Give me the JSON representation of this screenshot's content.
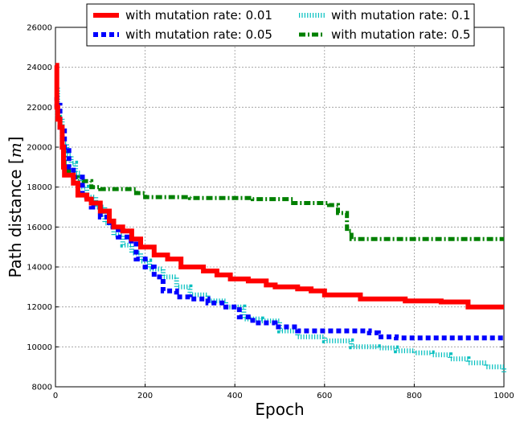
{
  "chart_data": {
    "type": "line",
    "title": "",
    "xlabel": "Epoch",
    "ylabel": "Path distance [m]",
    "ylabel_parts": {
      "prefix": "Path distance [",
      "unit": "m",
      "suffix": "]"
    },
    "xlim": [
      0,
      1000
    ],
    "ylim": [
      8000,
      26000
    ],
    "xticks": [
      0,
      200,
      400,
      600,
      800,
      1000
    ],
    "yticks": [
      8000,
      10000,
      12000,
      14000,
      16000,
      18000,
      20000,
      22000,
      24000,
      26000
    ],
    "grid": true,
    "legend_position": "top-center",
    "series": [
      {
        "name": "with mutation rate: 0.01",
        "color": "#ff0000",
        "style": "solid",
        "points": [
          [
            0,
            24100
          ],
          [
            3,
            22000
          ],
          [
            5,
            21400
          ],
          [
            10,
            21000
          ],
          [
            15,
            20000
          ],
          [
            18,
            19000
          ],
          [
            20,
            18600
          ],
          [
            30,
            18600
          ],
          [
            40,
            18200
          ],
          [
            50,
            17600
          ],
          [
            70,
            17400
          ],
          [
            80,
            17200
          ],
          [
            100,
            16800
          ],
          [
            120,
            16300
          ],
          [
            130,
            16000
          ],
          [
            150,
            15800
          ],
          [
            170,
            15400
          ],
          [
            190,
            15000
          ],
          [
            220,
            14600
          ],
          [
            250,
            14400
          ],
          [
            280,
            14000
          ],
          [
            330,
            13800
          ],
          [
            360,
            13600
          ],
          [
            390,
            13400
          ],
          [
            430,
            13300
          ],
          [
            470,
            13100
          ],
          [
            490,
            13000
          ],
          [
            540,
            12900
          ],
          [
            570,
            12800
          ],
          [
            600,
            12600
          ],
          [
            680,
            12400
          ],
          [
            780,
            12300
          ],
          [
            860,
            12250
          ],
          [
            920,
            12000
          ],
          [
            1000,
            12000
          ]
        ]
      },
      {
        "name": "with mutation rate: 0.05",
        "color": "#0000ff",
        "style": "dashed",
        "points": [
          [
            0,
            22500
          ],
          [
            3,
            22100
          ],
          [
            10,
            21000
          ],
          [
            20,
            20000
          ],
          [
            30,
            19000
          ],
          [
            40,
            18500
          ],
          [
            60,
            17500
          ],
          [
            80,
            17000
          ],
          [
            100,
            16500
          ],
          [
            120,
            16000
          ],
          [
            140,
            15500
          ],
          [
            160,
            15300
          ],
          [
            180,
            14400
          ],
          [
            200,
            14000
          ],
          [
            220,
            13500
          ],
          [
            240,
            12800
          ],
          [
            270,
            12500
          ],
          [
            300,
            12400
          ],
          [
            340,
            12200
          ],
          [
            380,
            12000
          ],
          [
            410,
            11500
          ],
          [
            440,
            11200
          ],
          [
            490,
            11000
          ],
          [
            540,
            10800
          ],
          [
            700,
            10700
          ],
          [
            720,
            10500
          ],
          [
            760,
            10450
          ],
          [
            1000,
            10450
          ]
        ]
      },
      {
        "name": "with mutation rate: 0.1",
        "color": "#00bfbf",
        "style": "dotted",
        "points": [
          [
            0,
            23000
          ],
          [
            5,
            21500
          ],
          [
            15,
            20200
          ],
          [
            25,
            19600
          ],
          [
            35,
            19200
          ],
          [
            45,
            18700
          ],
          [
            55,
            18000
          ],
          [
            70,
            17500
          ],
          [
            90,
            17000
          ],
          [
            110,
            16200
          ],
          [
            130,
            15600
          ],
          [
            150,
            15100
          ],
          [
            170,
            14700
          ],
          [
            190,
            14300
          ],
          [
            210,
            13900
          ],
          [
            240,
            13500
          ],
          [
            270,
            13000
          ],
          [
            300,
            12600
          ],
          [
            340,
            12300
          ],
          [
            380,
            12000
          ],
          [
            420,
            11400
          ],
          [
            460,
            11300
          ],
          [
            500,
            10800
          ],
          [
            540,
            10500
          ],
          [
            600,
            10300
          ],
          [
            660,
            10000
          ],
          [
            720,
            9950
          ],
          [
            760,
            9800
          ],
          [
            800,
            9700
          ],
          [
            840,
            9600
          ],
          [
            880,
            9400
          ],
          [
            920,
            9200
          ],
          [
            960,
            9000
          ],
          [
            1000,
            8700
          ]
        ]
      },
      {
        "name": "with mutation rate: 0.5",
        "color": "#008000",
        "style": "dashdot",
        "points": [
          [
            0,
            21500
          ],
          [
            10,
            21000
          ],
          [
            15,
            20000
          ],
          [
            20,
            18800
          ],
          [
            30,
            18700
          ],
          [
            40,
            18500
          ],
          [
            50,
            18300
          ],
          [
            80,
            18000
          ],
          [
            100,
            17900
          ],
          [
            180,
            17700
          ],
          [
            200,
            17500
          ],
          [
            300,
            17450
          ],
          [
            440,
            17400
          ],
          [
            530,
            17200
          ],
          [
            610,
            17100
          ],
          [
            630,
            16700
          ],
          [
            650,
            15800
          ],
          [
            660,
            15400
          ],
          [
            1000,
            15400
          ]
        ]
      }
    ]
  }
}
